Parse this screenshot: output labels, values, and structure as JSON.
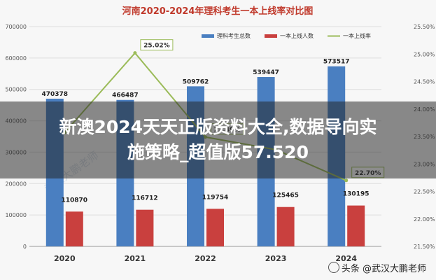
{
  "chart_data": {
    "type": "bar",
    "title": "河南2020-2024年理科考生一本上线率对比图",
    "categories": [
      "2020",
      "2021",
      "2022",
      "2023",
      "2024"
    ],
    "series": [
      {
        "name": "理科考生总数",
        "kind": "bar",
        "axis": "left",
        "color": "#4a7fc1",
        "values": [
          470378,
          466487,
          509762,
          539447,
          573517
        ],
        "labels": [
          "470378",
          "466487",
          "509762",
          "539447",
          "573517"
        ]
      },
      {
        "name": "一本上线人数",
        "kind": "bar",
        "axis": "left",
        "color": "#c9403e",
        "values": [
          110870,
          116712,
          119754,
          125465,
          130195
        ],
        "labels": [
          "110870",
          "116712",
          "119754",
          "125465",
          "130195"
        ]
      },
      {
        "name": "一本上线率",
        "kind": "line",
        "axis": "right",
        "color": "#9bbb59",
        "values": [
          23.57,
          25.02,
          23.49,
          23.26,
          22.7
        ],
        "labels": [
          "",
          "25.02%",
          "23.49%",
          "",
          "22.70%"
        ]
      }
    ],
    "ylim_left": [
      0,
      700000
    ],
    "yticks_left": [
      "0",
      "100000",
      "200000",
      "300000",
      "400000",
      "500000",
      "600000",
      "700000"
    ],
    "ylim_right": [
      21.5,
      25.5
    ],
    "yticks_right": [
      "21.50%",
      "22.00%",
      "22.50%",
      "23.00%",
      "23.50%",
      "24.00%",
      "24.50%",
      "25.00%",
      "25.50%"
    ],
    "grid": true,
    "legend": "top-right"
  },
  "overlay": {
    "line1": "新澳2024天天正版资料大全,数据导向实",
    "line2": "施策略_超值版57.520"
  },
  "source_label": "头条 @武汉大鹏老师",
  "watermark": "武汉大鹏老师"
}
